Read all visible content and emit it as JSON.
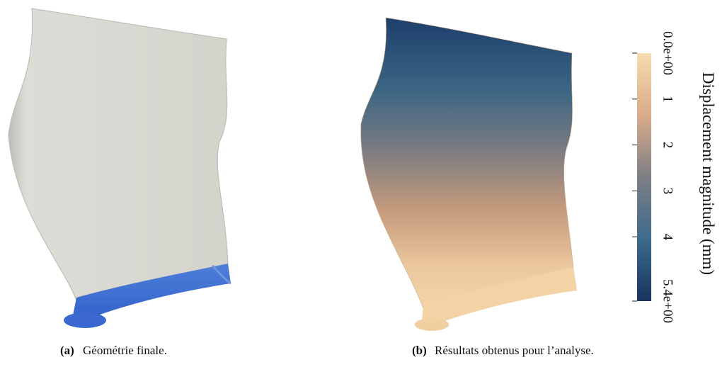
{
  "figure": {
    "panels": [
      {
        "label": "(a)",
        "caption": "Géométrie finale."
      },
      {
        "label": "(b)",
        "caption": "Résultats obtenus pour l’analyse."
      }
    ],
    "colorbar": {
      "title": "Displacement magnitude (mm)",
      "range": [
        0,
        5.4
      ],
      "ticks": [
        {
          "value": 0,
          "label": "0.0e+00"
        },
        1,
        2,
        3,
        4,
        {
          "value": 5.4,
          "label": "5.4e+00"
        }
      ]
    }
  }
}
